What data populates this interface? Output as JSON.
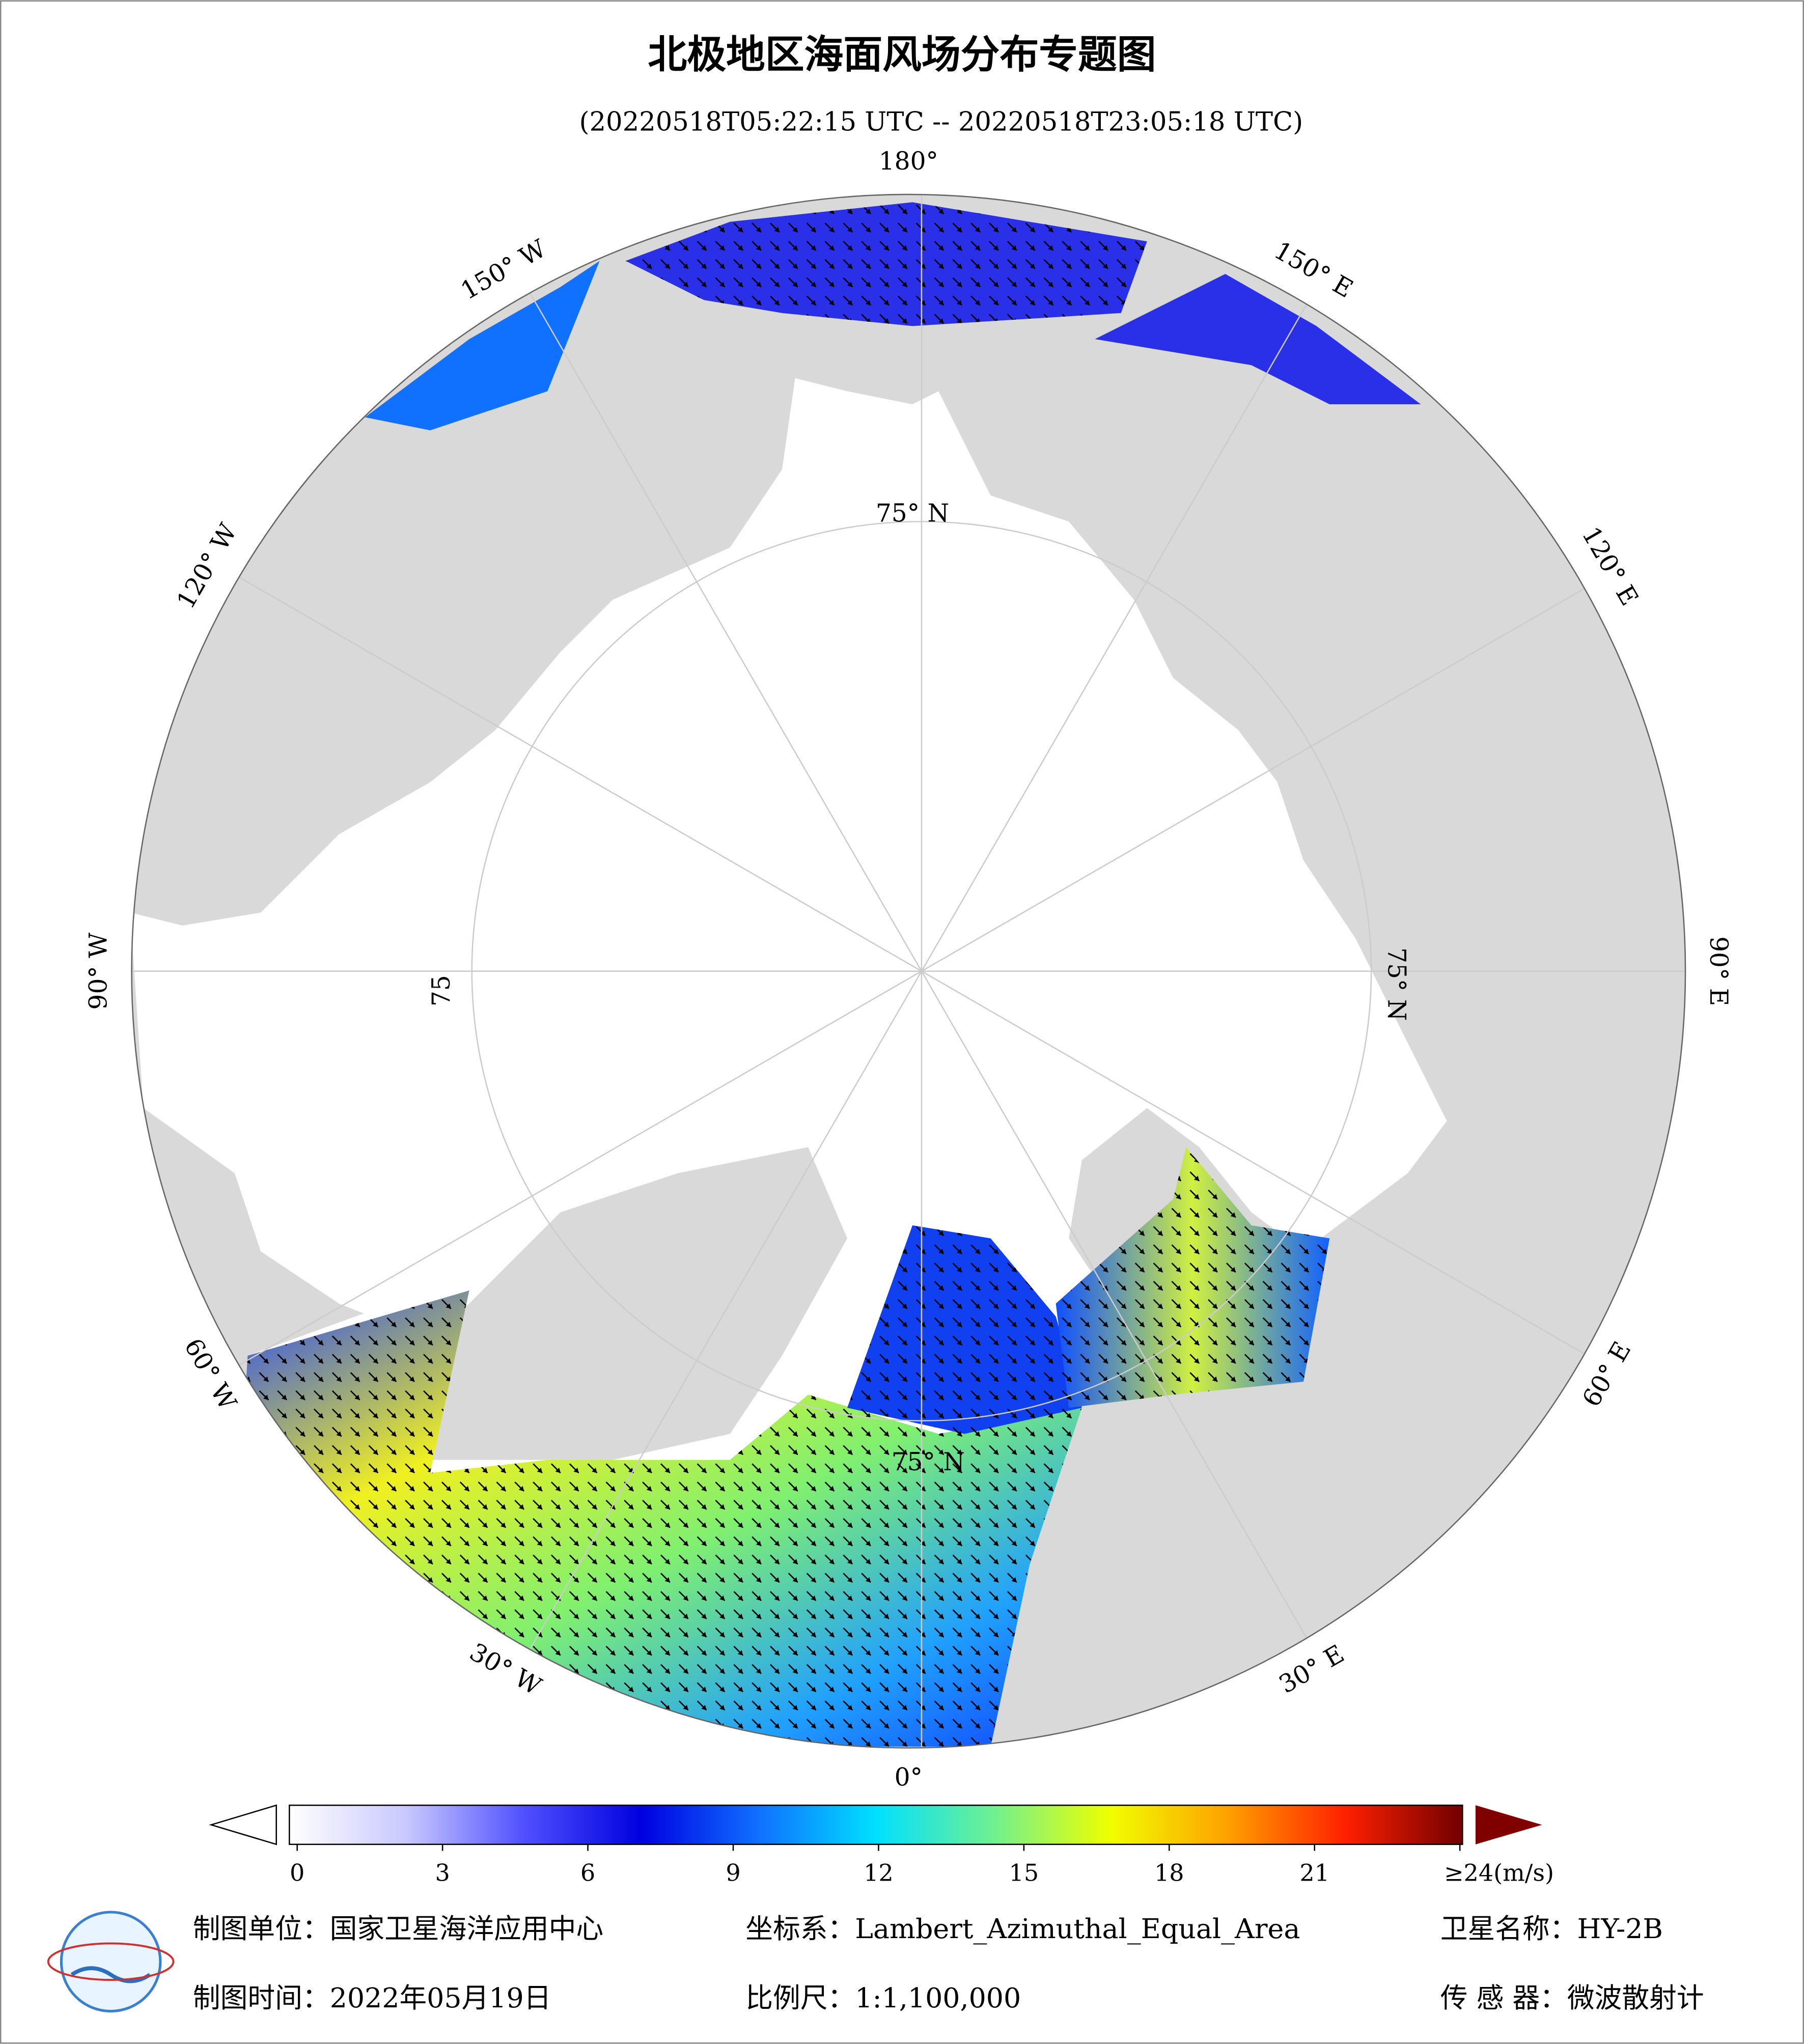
{
  "header": {
    "title": "北极地区海面风场分布专题图",
    "subtitle": "(20220518T05:22:15 UTC -- 20220518T23:05:18 UTC)"
  },
  "map": {
    "longitude_labels": [
      "0°",
      "30° E",
      "60° E",
      "90° E",
      "120° E",
      "150° E",
      "180°",
      "150° W",
      "120° W",
      "90° W",
      "60° W",
      "30° W"
    ],
    "latitude_labels": [
      "75° N",
      "75° N",
      "75",
      "75° N"
    ]
  },
  "colorbar": {
    "ticks": [
      0,
      3,
      6,
      9,
      12,
      15,
      18,
      21,
      {
        "value": 24,
        "label": "≥24(m/s)"
      }
    ],
    "colors": [
      "#ffffff",
      "#c8c8ff",
      "#5050ff",
      "#0000e0",
      "#1070ff",
      "#00e0ff",
      "#70f090",
      "#f0ff00",
      "#ffa000",
      "#ff2000",
      "#700000"
    ]
  },
  "footer": {
    "unit": "制图单位：国家卫星海洋应用中心",
    "projection": "坐标系：Lambert_Azimuthal_Equal_Area",
    "satellite": "卫星名称：HY-2B",
    "date": "制图时间：2022年05月19日",
    "scale": "比例尺：1:1,100,000",
    "sensor": "传 感 器：微波散射计"
  }
}
